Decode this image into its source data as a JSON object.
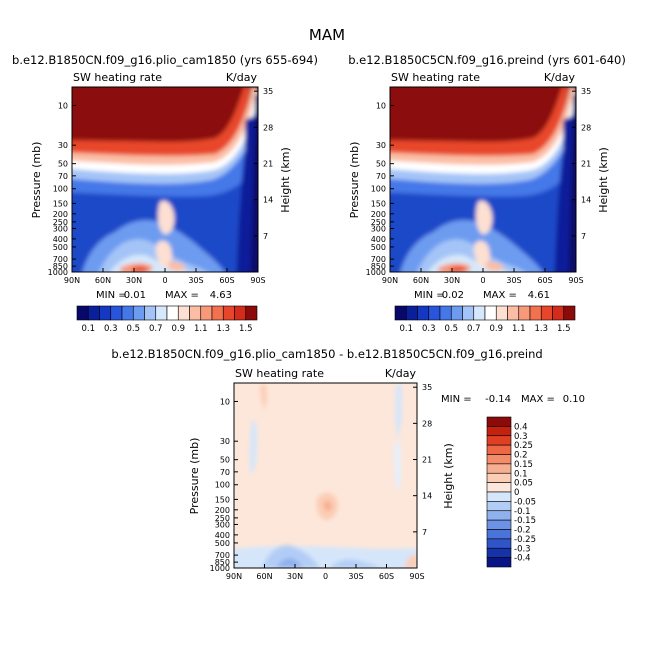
{
  "figure": {
    "title": "MAM"
  },
  "chart_data": [
    {
      "type": "heatmap",
      "title": "b.e12.B1850CN.f09_g16.plio_cam1850 (yrs 655-694)",
      "variable": "SW heating rate",
      "units": "K/day",
      "ylabel": "Pressure (mb)",
      "ylabel_right": "Height (km)",
      "x_ticks": [
        "90N",
        "60N",
        "30N",
        "0",
        "30S",
        "60S",
        "90S"
      ],
      "y_ticks": [
        "10",
        "30",
        "50",
        "70",
        "100",
        "150",
        "200",
        "250",
        "300",
        "400",
        "500",
        "700",
        "850",
        "1000"
      ],
      "y_ticks_right": [
        "35",
        "28",
        "21",
        "14",
        "7"
      ],
      "y_scale": "log",
      "min_label": "MIN =",
      "min": "0.01",
      "max_label": "MAX =",
      "max": "4.63",
      "colorbar_labels": [
        "0.1",
        "0.3",
        "0.5",
        "0.7",
        "0.9",
        "1.1",
        "1.3",
        "1.5"
      ],
      "colorbar_levels": [
        0.1,
        0.2,
        0.3,
        0.4,
        0.5,
        0.6,
        0.7,
        0.8,
        0.9,
        1.0,
        1.1,
        1.2,
        1.3,
        1.4,
        1.5
      ],
      "colorbar_orientation": "horizontal",
      "colors": [
        "#08086b",
        "#0a1f9a",
        "#1538c2",
        "#2855dc",
        "#4478e8",
        "#6d9bf0",
        "#a4c4f7",
        "#d6e8fb",
        "#ffffff",
        "#fde0d2",
        "#fbbda4",
        "#f8997a",
        "#f2714e",
        "#e8462a",
        "#d42b1a",
        "#8b0a0a"
      ]
    },
    {
      "type": "heatmap",
      "title": "b.e12.B1850C5CN.f09_g16.preind (yrs 601-640)",
      "variable": "SW heating rate",
      "units": "K/day",
      "ylabel": "Pressure (mb)",
      "ylabel_right": "Height (km)",
      "x_ticks": [
        "90N",
        "60N",
        "30N",
        "0",
        "30S",
        "60S",
        "90S"
      ],
      "y_ticks": [
        "10",
        "30",
        "50",
        "70",
        "100",
        "150",
        "200",
        "250",
        "300",
        "400",
        "500",
        "700",
        "850",
        "1000"
      ],
      "y_ticks_right": [
        "35",
        "28",
        "21",
        "14",
        "7"
      ],
      "y_scale": "log",
      "min_label": "MIN =",
      "min": "0.02",
      "max_label": "MAX =",
      "max": "4.61",
      "colorbar_labels": [
        "0.1",
        "0.3",
        "0.5",
        "0.7",
        "0.9",
        "1.1",
        "1.3",
        "1.5"
      ],
      "colorbar_levels": [
        0.1,
        0.2,
        0.3,
        0.4,
        0.5,
        0.6,
        0.7,
        0.8,
        0.9,
        1.0,
        1.1,
        1.2,
        1.3,
        1.4,
        1.5
      ],
      "colorbar_orientation": "horizontal",
      "colors": [
        "#08086b",
        "#0a1f9a",
        "#1538c2",
        "#2855dc",
        "#4478e8",
        "#6d9bf0",
        "#a4c4f7",
        "#d6e8fb",
        "#ffffff",
        "#fde0d2",
        "#fbbda4",
        "#f8997a",
        "#f2714e",
        "#e8462a",
        "#d42b1a",
        "#8b0a0a"
      ]
    },
    {
      "type": "heatmap",
      "title": "b.e12.B1850CN.f09_g16.plio_cam1850 - b.e12.B1850C5CN.f09_g16.preind",
      "variable": "SW heating rate",
      "units": "K/day",
      "ylabel": "Pressure (mb)",
      "ylabel_right": "Height (km)",
      "x_ticks": [
        "90N",
        "60N",
        "30N",
        "0",
        "30S",
        "60S",
        "90S"
      ],
      "y_ticks": [
        "10",
        "30",
        "50",
        "70",
        "100",
        "150",
        "200",
        "250",
        "300",
        "400",
        "500",
        "700",
        "850",
        "1000"
      ],
      "y_ticks_right": [
        "35",
        "28",
        "21",
        "14",
        "7"
      ],
      "y_scale": "log",
      "min_label": "MIN =",
      "min": "-0.14",
      "max_label": "MAX =",
      "max": "0.10",
      "colorbar_labels": [
        "0.4",
        "0.3",
        "0.25",
        "0.2",
        "0.15",
        "0.1",
        "0.05",
        "0",
        "-0.05",
        "-0.1",
        "-0.15",
        "-0.2",
        "-0.25",
        "-0.3",
        "-0.4"
      ],
      "colorbar_orientation": "vertical",
      "colors": [
        "#8b0a0a",
        "#c4210f",
        "#e03f24",
        "#ee6845",
        "#f48c6a",
        "#f8ae90",
        "#fbcdb5",
        "#fde7da",
        "#d5e6fa",
        "#b2cdf5",
        "#8fb1ee",
        "#6c93e5",
        "#4b74da",
        "#2f55c8",
        "#1533a8",
        "#0a1585"
      ]
    }
  ]
}
